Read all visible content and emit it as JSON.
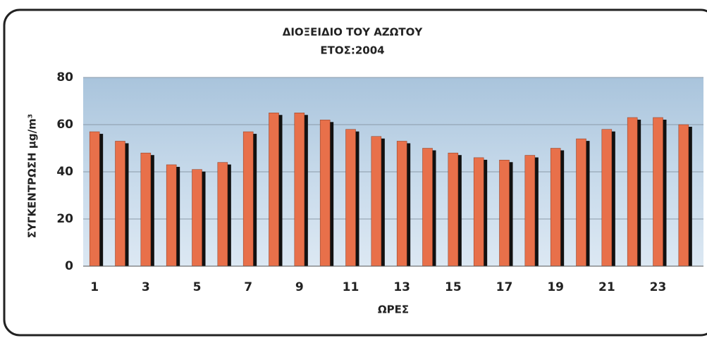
{
  "chart_data": {
    "type": "bar",
    "title": "ΔΙΟΞΕΙΔΙΟ ΤΟΥ ΑΖΩΤΟΥ",
    "subtitle": "ΕΤΟΣ:2004",
    "x_label": "ΩΡΕΣ",
    "y_label": "ΣΥΓΚΕΝΤΡΩΣΗ μg/m³",
    "categories": [
      "1",
      null,
      "3",
      null,
      "5",
      null,
      "7",
      null,
      "9",
      null,
      "11",
      null,
      "13",
      null,
      "15",
      null,
      "17",
      null,
      "19",
      null,
      "21",
      null,
      "23",
      null
    ],
    "values": [
      57,
      53,
      48,
      43,
      41,
      44,
      57,
      65,
      65,
      62,
      58,
      55,
      53,
      50,
      48,
      46,
      45,
      47,
      50,
      54,
      58,
      63,
      63,
      60
    ],
    "color": "#e8704a",
    "ylim": [
      0,
      80
    ],
    "yticks": [
      0,
      20,
      40,
      60,
      80
    ],
    "grid": true
  }
}
